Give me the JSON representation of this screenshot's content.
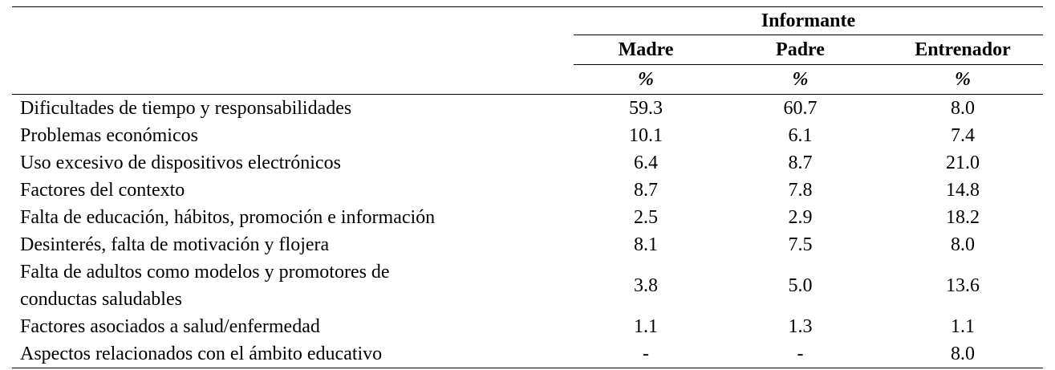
{
  "table": {
    "header": {
      "group": "Informante",
      "columns": [
        "Madre",
        "Padre",
        "Entrenador"
      ],
      "unit_row": [
        "%",
        "%",
        "%"
      ]
    },
    "rows": [
      {
        "label": "Dificultades de tiempo y responsabilidades",
        "values": [
          "59.3",
          "60.7",
          "8.0"
        ]
      },
      {
        "label": "Problemas económicos",
        "values": [
          "10.1",
          "6.1",
          "7.4"
        ]
      },
      {
        "label": "Uso excesivo de dispositivos electrónicos",
        "values": [
          "6.4",
          "8.7",
          "21.0"
        ]
      },
      {
        "label": "Factores del contexto",
        "values": [
          "8.7",
          "7.8",
          "14.8"
        ]
      },
      {
        "label": "Falta de educación, hábitos, promoción e información",
        "values": [
          "2.5",
          "2.9",
          "18.2"
        ]
      },
      {
        "label": "Desinterés, falta de motivación y flojera",
        "values": [
          "8.1",
          "7.5",
          "8.0"
        ]
      },
      {
        "label": [
          "Falta de adultos como modelos y promotores de",
          "conductas saludables"
        ],
        "values": [
          "3.8",
          "5.0",
          "13.6"
        ]
      },
      {
        "label": "Factores asociados a salud/enfermedad",
        "values": [
          "1.1",
          "1.3",
          "1.1"
        ]
      },
      {
        "label": "Aspectos relacionados con el ámbito educativo",
        "values": [
          "-",
          "-",
          "8.0"
        ]
      }
    ]
  }
}
